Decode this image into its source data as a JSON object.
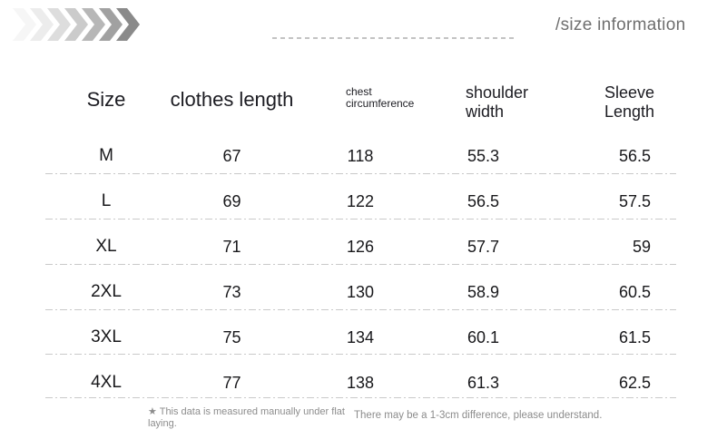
{
  "header": {
    "title": "/size information",
    "title_color": "#6f6f6f",
    "chevron_colors": [
      "#f6f6f6",
      "#ececec",
      "#dddddd",
      "#cbcbcb",
      "#b7b7b7",
      "#a1a1a1",
      "#8a8a8a"
    ]
  },
  "table": {
    "headers": {
      "size": "Size",
      "clothes_length": "clothes length",
      "chest_circumference": "chest\ncircumference",
      "shoulder_width": "shoulder\nwidth",
      "sleeve_length": "Sleeve\nLength"
    },
    "rows": [
      [
        "M",
        "67",
        "118",
        "55.3",
        "56.5"
      ],
      [
        "L",
        "69",
        "122",
        "56.5",
        "57.5"
      ],
      [
        "XL",
        "71",
        "126",
        "57.7",
        "59"
      ],
      [
        "2XL",
        "73",
        "130",
        "58.9",
        "60.5"
      ],
      [
        "3XL",
        "75",
        "134",
        "60.1",
        "61.5"
      ],
      [
        "4XL",
        "77",
        "138",
        "61.3",
        "62.5"
      ]
    ],
    "divider_color": "#c9c9c9",
    "text_color": "#18181b"
  },
  "footnotes": {
    "left": "★ This data is measured manually under flat laying.",
    "right": "There may be a 1-3cm difference, please understand."
  },
  "chart_data": {
    "type": "table",
    "title": "/size information",
    "columns": [
      "Size",
      "clothes length",
      "chest circumference",
      "shoulder width",
      "Sleeve Length"
    ],
    "rows": [
      [
        "M",
        67,
        118,
        55.3,
        56.5
      ],
      [
        "L",
        69,
        122,
        56.5,
        57.5
      ],
      [
        "XL",
        71,
        126,
        57.7,
        59
      ],
      [
        "2XL",
        73,
        130,
        58.9,
        60.5
      ],
      [
        "3XL",
        75,
        134,
        60.1,
        61.5
      ],
      [
        "4XL",
        77,
        138,
        61.3,
        62.5
      ]
    ],
    "notes": [
      "This data is measured manually under flat laying.",
      "There may be a 1-3cm difference, please understand."
    ],
    "layout": "size chart table with dash-dot row dividers, no vertical gridlines"
  }
}
